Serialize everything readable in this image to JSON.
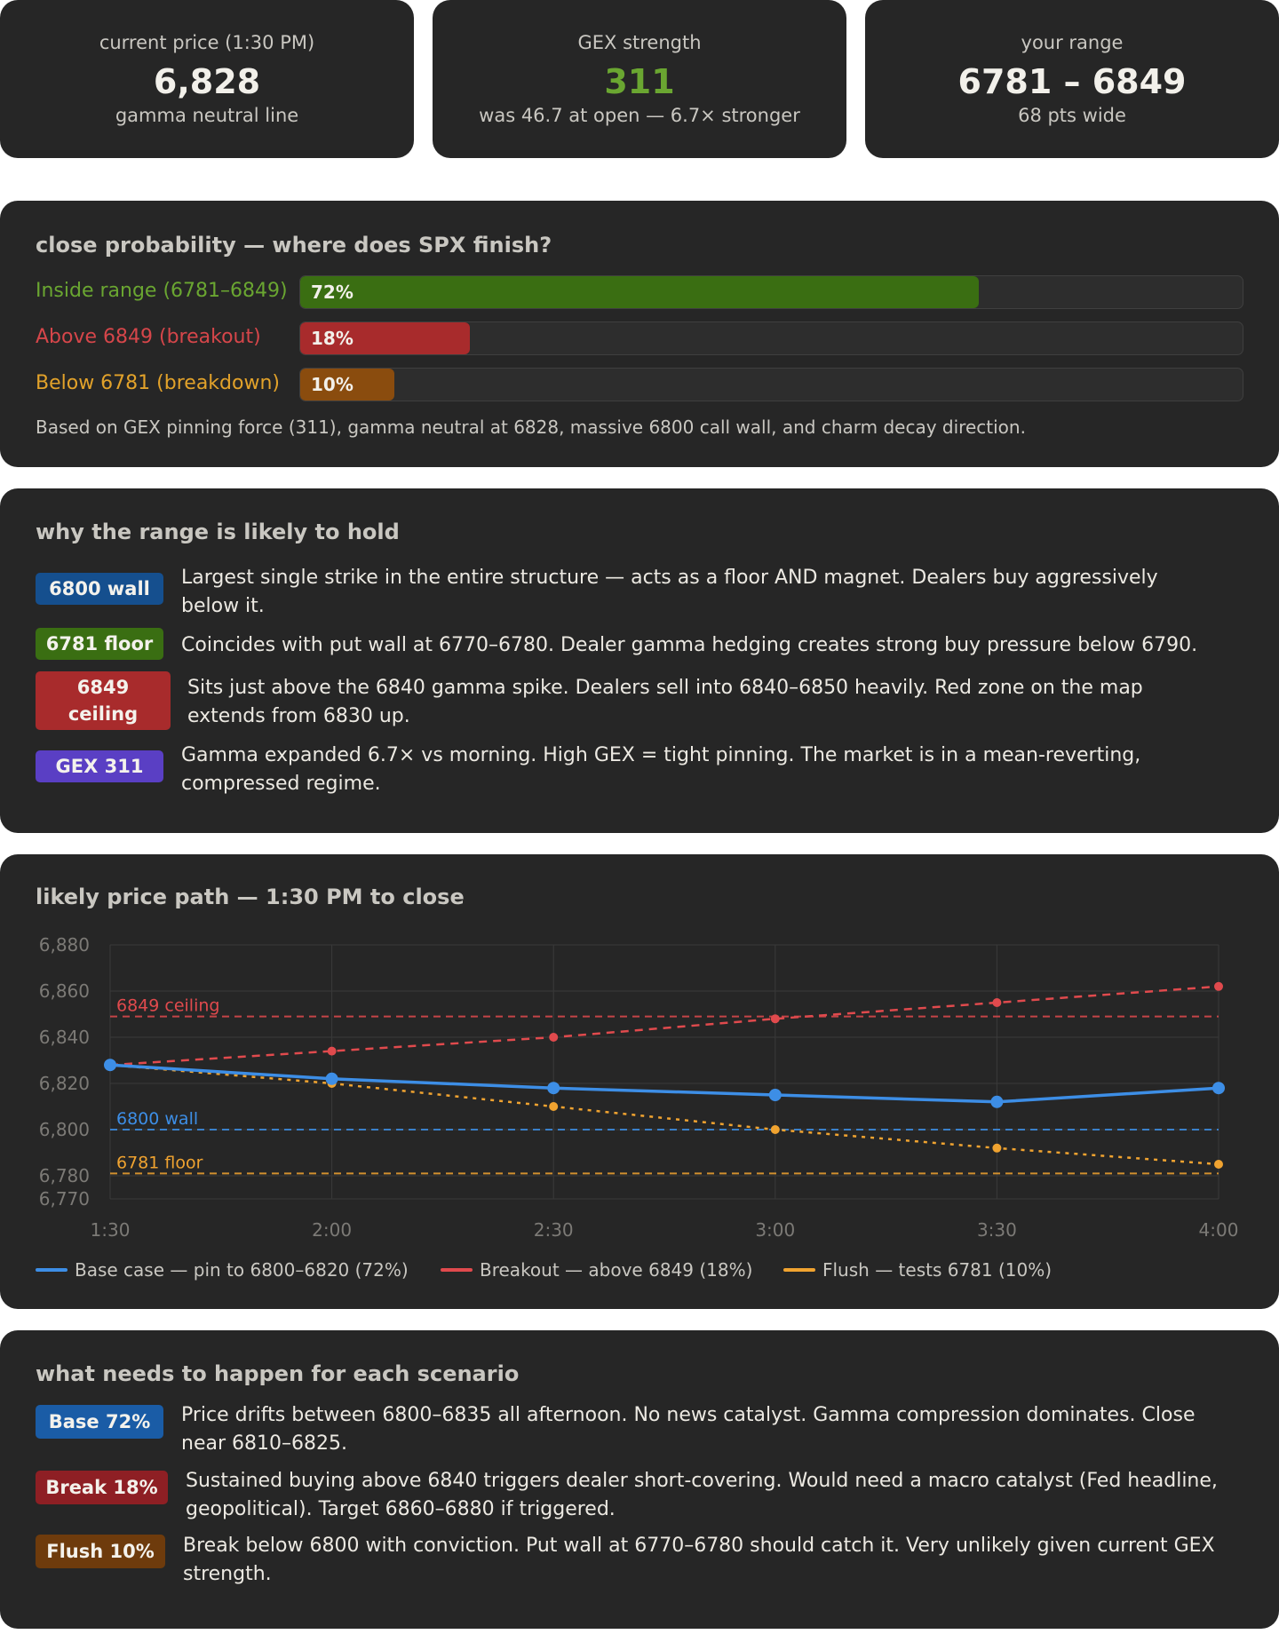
{
  "stats": {
    "price": {
      "label": "current price (1:30 PM)",
      "value": "6,828",
      "sub": "gamma neutral line"
    },
    "gex": {
      "label": "GEX strength",
      "value": "311",
      "sub": "was 46.7 at open — 6.7× stronger"
    },
    "range": {
      "label": "your range",
      "value": "6781 – 6849",
      "sub": "68 pts wide"
    }
  },
  "probability": {
    "title": "close probability — where does SPX finish?",
    "rows": [
      {
        "label": "Inside range (6781–6849)",
        "pct": "72%",
        "value": 72,
        "color": "#3a6e12",
        "label_color": "#6aa631"
      },
      {
        "label": "Above 6849 (breakout)",
        "pct": "18%",
        "value": 18,
        "color": "#a82b2c",
        "label_color": "#d6464a"
      },
      {
        "label": "Below 6781 (breakdown)",
        "pct": "10%",
        "value": 10,
        "color": "#8a4c0e",
        "label_color": "#e2a22a"
      }
    ],
    "note": "Based on GEX pinning force (311), gamma neutral at 6828, massive 6800 call wall, and charm decay direction."
  },
  "why": {
    "title": "why the range is likely to hold",
    "items": [
      {
        "badge": "6800 wall",
        "color": "#154f8e",
        "text": "Largest single strike in the entire structure — acts as a floor AND magnet. Dealers buy aggressively below it."
      },
      {
        "badge": "6781 floor",
        "color": "#3a6e12",
        "text": "Coincides with put wall at 6770–6780. Dealer gamma hedging creates strong buy pressure below 6790."
      },
      {
        "badge": "6849 ceiling",
        "color": "#a82b2c",
        "text": "Sits just above the 6840 gamma spike. Dealers sell into 6840–6850 heavily. Red zone on the map extends from 6830 up."
      },
      {
        "badge": "GEX 311",
        "color": "#5a3fc4",
        "text": "Gamma expanded 6.7× vs morning. High GEX = tight pinning. The market is in a mean-reverting, compressed regime."
      }
    ]
  },
  "path": {
    "title": "likely price path — 1:30 PM to close"
  },
  "chart_data": {
    "type": "line",
    "title": "likely price path — 1:30 PM to close",
    "categories": [
      "1:30",
      "2:00",
      "2:30",
      "3:00",
      "3:30",
      "4:00"
    ],
    "yticks": [
      "6,880",
      "6,860",
      "6,840",
      "6,820",
      "6,800",
      "6,780",
      "6,770"
    ],
    "ylim": [
      6770,
      6880
    ],
    "series": [
      {
        "name": "Base case — pin to 6800–6820 (72%)",
        "color": "#3d8ee6",
        "dash": "solid",
        "values": [
          6828,
          6822,
          6818,
          6815,
          6812,
          6818
        ]
      },
      {
        "name": "Breakout — above 6849 (18%)",
        "color": "#e04a4d",
        "dash": "dashed",
        "values": [
          6828,
          6834,
          6840,
          6848,
          6855,
          6862
        ]
      },
      {
        "name": "Flush — tests 6781 (10%)",
        "color": "#f0a330",
        "dash": "dotted",
        "values": [
          6828,
          6820,
          6810,
          6800,
          6792,
          6785
        ]
      }
    ],
    "reference_lines": [
      {
        "label": "6849 ceiling",
        "value": 6849,
        "color": "#e04a4d"
      },
      {
        "label": "6800 wall",
        "value": 6800,
        "color": "#3d8ee6"
      },
      {
        "label": "6781 floor",
        "value": 6781,
        "color": "#f0a330"
      }
    ]
  },
  "scenarios": {
    "title": "what needs to happen for each scenario",
    "items": [
      {
        "badge": "Base 72%",
        "color": "#1a5ca6",
        "text": "Price drifts between 6800–6835 all afternoon. No news catalyst. Gamma compression dominates. Close near 6810–6825."
      },
      {
        "badge": "Break 18%",
        "color": "#8e1f24",
        "text": "Sustained buying above 6840 triggers dealer short-covering. Would need a macro catalyst (Fed headline, geopolitical). Target 6860–6880 if triggered."
      },
      {
        "badge": "Flush 10%",
        "color": "#6e3b0c",
        "text": "Break below 6800 with conviction. Put wall at 6770–6780 should catch it. Very unlikely given current GEX strength."
      }
    ]
  }
}
